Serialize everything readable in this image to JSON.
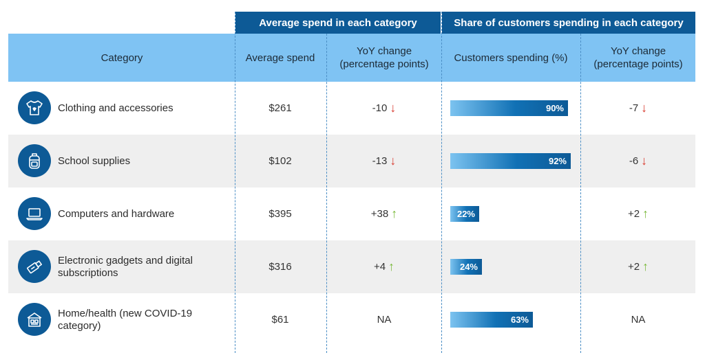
{
  "header_groups": {
    "average_spend": "Average spend in each category",
    "share_customers": "Share of customers spending in each category"
  },
  "columns": {
    "category": "Category",
    "average_spend": "Average spend",
    "yoy_change_line1": "YoY change",
    "yoy_change_line2": "(percentage points)",
    "customers_spending": "Customers spending (%)"
  },
  "chart_data": {
    "type": "table",
    "rows": [
      {
        "category": "Clothing and accessories",
        "icon": "tshirt-icon",
        "average_spend": "$261",
        "spend_yoy": "-10",
        "spend_dir": "down",
        "customers_pct": 90,
        "customers_label": "90%",
        "customers_yoy": "-7",
        "customers_dir": "down"
      },
      {
        "category": "School supplies",
        "icon": "backpack-icon",
        "average_spend": "$102",
        "spend_yoy": "-13",
        "spend_dir": "down",
        "customers_pct": 92,
        "customers_label": "92%",
        "customers_yoy": "-6",
        "customers_dir": "down"
      },
      {
        "category": "Computers and hardware",
        "icon": "laptop-icon",
        "average_spend": "$395",
        "spend_yoy": "+38",
        "spend_dir": "up",
        "customers_pct": 22,
        "customers_label": "22%",
        "customers_yoy": "+2",
        "customers_dir": "up"
      },
      {
        "category": "Electronic gadgets and digital subscriptions",
        "icon": "usb-drive-icon",
        "average_spend": "$316",
        "spend_yoy": "+4",
        "spend_dir": "up",
        "customers_pct": 24,
        "customers_label": "24%",
        "customers_yoy": "+2",
        "customers_dir": "up"
      },
      {
        "category": "Home/health (new COVID-19 category)",
        "icon": "house-icon",
        "average_spend": "$61",
        "spend_yoy": "NA",
        "spend_dir": "none",
        "customers_pct": 63,
        "customers_label": "63%",
        "customers_yoy": "NA",
        "customers_dir": "none"
      }
    ],
    "colors": {
      "dark_blue": "#0d5a96",
      "light_blue": "#7fc3f3",
      "down_arrow": "#d83a2e",
      "up_arrow": "#7ab93b"
    }
  }
}
